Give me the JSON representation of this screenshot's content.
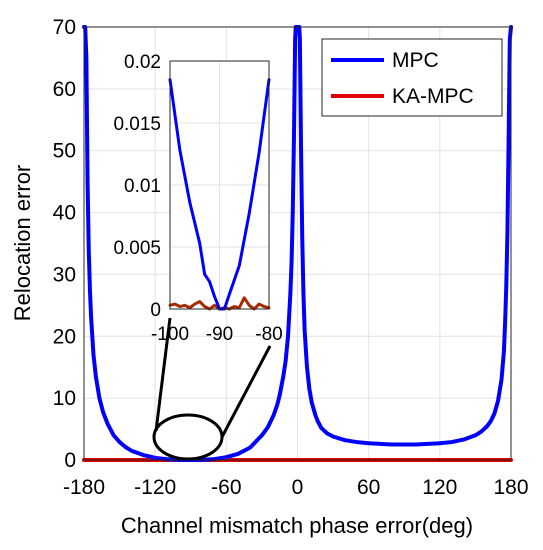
{
  "chart_data": [
    {
      "type": "line",
      "title": "",
      "xlabel": "Channel mismatch phase error(deg)",
      "ylabel": "Relocation error",
      "xlim": [
        -180,
        180
      ],
      "ylim": [
        0,
        70
      ],
      "xticks": [
        -180,
        -120,
        -60,
        0,
        60,
        120,
        180
      ],
      "yticks": [
        0,
        10,
        20,
        30,
        40,
        50,
        60,
        70
      ],
      "grid": true,
      "legend_position": "top-right",
      "series": [
        {
          "name": "MPC",
          "color": "#0000ff",
          "x": [
            -180,
            -179,
            -178,
            -177,
            -176,
            -175,
            -174,
            -172,
            -170,
            -167,
            -164,
            -160,
            -155,
            -150,
            -145,
            -140,
            -130,
            -120,
            -110,
            -100,
            -95,
            -90,
            -85,
            -80,
            -70,
            -60,
            -50,
            -40,
            -30,
            -25,
            -20,
            -17,
            -15,
            -12,
            -10,
            -8,
            -6,
            -5,
            -4,
            -3,
            -2,
            -1.5,
            -1,
            -0.5,
            0,
            0.5,
            1,
            1.5,
            2,
            3,
            4,
            5,
            6,
            8,
            10,
            12,
            15,
            17,
            20,
            25,
            30,
            40,
            50,
            60,
            70,
            80,
            90,
            100,
            110,
            120,
            130,
            140,
            150,
            155,
            160,
            163,
            166,
            169,
            172,
            174,
            175,
            176,
            177,
            178,
            179,
            180
          ],
          "y": [
            70,
            70,
            65,
            45,
            34,
            27.5,
            23,
            17,
            13.5,
            10,
            7.8,
            5.8,
            4.0,
            2.9,
            2.1,
            1.5,
            0.8,
            0.35,
            0.12,
            0.02,
            0.005,
            0,
            0.005,
            0.02,
            0.15,
            0.45,
            1.0,
            2.0,
            4.0,
            5.3,
            7.3,
            9.0,
            10.5,
            13.5,
            16,
            20,
            27,
            32,
            40,
            52,
            68,
            70,
            70,
            70,
            70,
            70,
            70,
            70,
            68,
            50,
            36,
            27,
            21,
            15,
            11.5,
            9.3,
            7.3,
            6.3,
            5.2,
            4.3,
            3.8,
            3.2,
            2.9,
            2.7,
            2.6,
            2.5,
            2.5,
            2.5,
            2.6,
            2.7,
            2.9,
            3.3,
            4.0,
            4.6,
            5.5,
            6.3,
            7.5,
            9.5,
            13,
            17.5,
            22,
            28,
            37,
            52,
            68,
            70
          ]
        },
        {
          "name": "KA-MPC",
          "color": "#e00000",
          "x": [
            -180,
            -90,
            180
          ],
          "y": [
            0,
            0,
            0
          ]
        }
      ]
    },
    {
      "type": "line",
      "title": "",
      "xlabel": "",
      "ylabel": "",
      "xlim": [
        -100,
        -80
      ],
      "ylim": [
        0,
        0.02
      ],
      "xticks": [
        -100,
        -90,
        -80
      ],
      "yticks": [
        0,
        0.005,
        0.01,
        0.015,
        0.02
      ],
      "ytick_labels": [
        "0",
        "0.005",
        "0.01",
        "0.015",
        "0.02"
      ],
      "grid": true,
      "series": [
        {
          "name": "MPC",
          "color": "#0000ff",
          "x": [
            -100,
            -98,
            -96,
            -94,
            -93,
            -92,
            -91,
            -90,
            -89,
            -88,
            -86,
            -84,
            -82,
            -80
          ],
          "y": [
            0.0185,
            0.0128,
            0.0086,
            0.0053,
            0.0028,
            0.0022,
            0.001,
            0.0,
            0.0,
            0.0012,
            0.0035,
            0.0077,
            0.0126,
            0.0185
          ]
        },
        {
          "name": "KA-MPC",
          "color": "#a52a00",
          "x": [
            -100,
            -99,
            -98,
            -97,
            -96,
            -95,
            -94,
            -93,
            -92,
            -91,
            -90,
            -89,
            -88,
            -87,
            -86,
            -85,
            -84,
            -83,
            -82,
            -81,
            -80
          ],
          "y": [
            0.0003,
            0.0004,
            0.0002,
            0.0003,
            0.0001,
            0.0004,
            0.0006,
            0.0002,
            0.0,
            0.0003,
            0.0,
            0.0001,
            0.0,
            0.0002,
            0.0001,
            0.0009,
            0.0003,
            0.0,
            0.0004,
            0.0002,
            0.0001
          ]
        }
      ]
    }
  ]
}
